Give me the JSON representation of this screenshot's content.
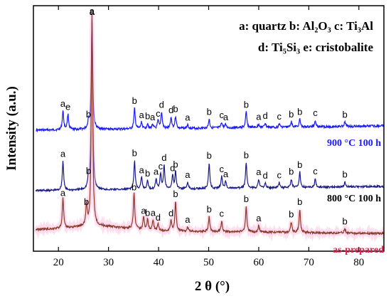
{
  "chart_data": {
    "type": "line",
    "xlabel": "2 θ (°)",
    "ylabel": "Intensity (a.u.)",
    "xlim": [
      15,
      85
    ],
    "xticks": [
      "20",
      "30",
      "40",
      "50",
      "60",
      "70",
      "80"
    ],
    "legend": {
      "line1": "a: quartz  b: Al₂O₃  c: Ti₃Al",
      "line2": "d: Ti₅Si₃  e: cristobalite"
    },
    "series": [
      {
        "name": "900 °C 100 h",
        "color": "#1a1aff",
        "peaks": [
          {
            "x": 20.9,
            "h": 0.17,
            "label": "a"
          },
          {
            "x": 21.9,
            "h": 0.14,
            "label": "e"
          },
          {
            "x": 26.0,
            "h": 0.07,
            "label": "b"
          },
          {
            "x": 26.7,
            "h": 1.0,
            "label": "a"
          },
          {
            "x": 35.2,
            "h": 0.19,
            "label": "b"
          },
          {
            "x": 36.6,
            "h": 0.06,
            "label": "a"
          },
          {
            "x": 37.8,
            "h": 0.05,
            "label": "b"
          },
          {
            "x": 38.8,
            "h": 0.04,
            "label": "a"
          },
          {
            "x": 39.9,
            "h": 0.07,
            "label": "c"
          },
          {
            "x": 40.6,
            "h": 0.15,
            "label": "d"
          },
          {
            "x": 42.5,
            "h": 0.1,
            "label": "d"
          },
          {
            "x": 43.4,
            "h": 0.11,
            "label": "b"
          },
          {
            "x": 45.8,
            "h": 0.03,
            "label": "a"
          },
          {
            "x": 50.1,
            "h": 0.08,
            "label": "b"
          },
          {
            "x": 52.6,
            "h": 0.05,
            "label": "c"
          },
          {
            "x": 53.4,
            "h": 0.03,
            "label": "a"
          },
          {
            "x": 57.5,
            "h": 0.14,
            "label": "b"
          },
          {
            "x": 60.0,
            "h": 0.03,
            "label": "a"
          },
          {
            "x": 61.3,
            "h": 0.04,
            "label": "d"
          },
          {
            "x": 64.1,
            "h": 0.03,
            "label": "c"
          },
          {
            "x": 66.5,
            "h": 0.05,
            "label": "b"
          },
          {
            "x": 68.2,
            "h": 0.07,
            "label": "b"
          },
          {
            "x": 71.3,
            "h": 0.06,
            "label": "c"
          },
          {
            "x": 77.2,
            "h": 0.04,
            "label": "b"
          }
        ]
      },
      {
        "name": "800 °C 100 h",
        "color": "#1a1a8c",
        "peaks": [
          {
            "x": 20.9,
            "h": 0.17,
            "label": "a"
          },
          {
            "x": 26.0,
            "h": 0.07,
            "label": "b"
          },
          {
            "x": 26.7,
            "h": 1.0
          },
          {
            "x": 35.2,
            "h": 0.17,
            "label": "b"
          },
          {
            "x": 36.6,
            "h": 0.07,
            "label": "a"
          },
          {
            "x": 37.8,
            "h": 0.05,
            "label": "b"
          },
          {
            "x": 39.5,
            "h": 0.06,
            "label": "a"
          },
          {
            "x": 40.4,
            "h": 0.09,
            "label": "c"
          },
          {
            "x": 41.1,
            "h": 0.14,
            "label": "d"
          },
          {
            "x": 42.8,
            "h": 0.08,
            "label": "d"
          },
          {
            "x": 43.4,
            "h": 0.1,
            "label": "b"
          },
          {
            "x": 45.8,
            "h": 0.04,
            "label": "a"
          },
          {
            "x": 50.1,
            "h": 0.15,
            "label": "b"
          },
          {
            "x": 52.6,
            "h": 0.07,
            "label": "c"
          },
          {
            "x": 53.4,
            "h": 0.04,
            "label": "a"
          },
          {
            "x": 57.5,
            "h": 0.15,
            "label": "b"
          },
          {
            "x": 60.0,
            "h": 0.05,
            "label": "a"
          },
          {
            "x": 61.3,
            "h": 0.03,
            "label": "d"
          },
          {
            "x": 64.1,
            "h": 0.03,
            "label": "c"
          },
          {
            "x": 66.5,
            "h": 0.05,
            "label": "b"
          },
          {
            "x": 68.2,
            "h": 0.09,
            "label": "b"
          },
          {
            "x": 71.3,
            "h": 0.05,
            "label": "c"
          },
          {
            "x": 77.2,
            "h": 0.03,
            "label": "b"
          }
        ]
      },
      {
        "name": "as-prepared",
        "color": "#8b3a2a",
        "label_color": "#e0204a",
        "peaks": [
          {
            "x": 20.9,
            "h": 0.14,
            "label": "a"
          },
          {
            "x": 25.6,
            "h": 0.1,
            "label": "b"
          },
          {
            "x": 26.7,
            "h": 1.0
          },
          {
            "x": 35.1,
            "h": 0.17,
            "label": "b"
          },
          {
            "x": 37.0,
            "h": 0.06,
            "label": "a"
          },
          {
            "x": 37.8,
            "h": 0.05,
            "label": "b"
          },
          {
            "x": 38.9,
            "h": 0.05,
            "label": "a"
          },
          {
            "x": 39.9,
            "h": 0.03,
            "label": "d"
          },
          {
            "x": 42.5,
            "h": 0.05,
            "label": "d"
          },
          {
            "x": 43.4,
            "h": 0.14,
            "label": "b"
          },
          {
            "x": 45.8,
            "h": 0.02,
            "label": "a"
          },
          {
            "x": 50.1,
            "h": 0.07,
            "label": "b"
          },
          {
            "x": 52.6,
            "h": 0.05,
            "label": "c"
          },
          {
            "x": 57.5,
            "h": 0.12,
            "label": "b"
          },
          {
            "x": 60.0,
            "h": 0.03,
            "label": "a"
          },
          {
            "x": 66.5,
            "h": 0.05,
            "label": "b"
          },
          {
            "x": 68.2,
            "h": 0.11,
            "label": "b"
          },
          {
            "x": 77.2,
            "h": 0.02,
            "label": "b"
          }
        ]
      }
    ]
  }
}
